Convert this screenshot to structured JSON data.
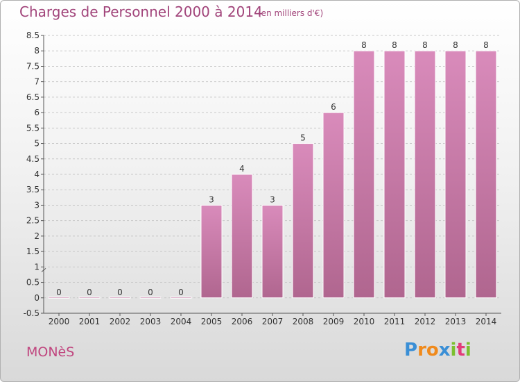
{
  "chart_data": {
    "type": "bar",
    "title": "Charges de Personnel 2000 à 2014",
    "subtitle": "(en milliers d'€)",
    "categories": [
      "2000",
      "2001",
      "2002",
      "2003",
      "2004",
      "2005",
      "2006",
      "2007",
      "2008",
      "2009",
      "2010",
      "2011",
      "2012",
      "2013",
      "2014"
    ],
    "values": [
      0,
      0,
      0,
      0,
      0,
      3,
      4,
      3,
      5,
      6,
      8,
      8,
      8,
      8,
      8
    ],
    "data_labels": [
      "0",
      "0",
      "0",
      "0",
      "0",
      "3",
      "4",
      "3",
      "5",
      "6",
      "8",
      "8",
      "8",
      "8",
      "8"
    ],
    "ylim": [
      -0.5,
      8.5
    ],
    "yticks": [
      "-0.5",
      "0",
      "0.5",
      "1",
      "1.5",
      "2",
      "2.5",
      "3",
      "3.5",
      "4",
      "4.5",
      "5",
      "5.5",
      "6",
      "6.5",
      "7",
      "7.5",
      "8",
      "8.5"
    ],
    "grid": true,
    "xlabel": "",
    "ylabel": "",
    "bar_color": "#d98bbb",
    "bar_color_dark": "#b0668f"
  },
  "commune": "MONèS",
  "brand": {
    "letters": [
      "P",
      "r",
      "o",
      "x",
      "i",
      "t",
      "i"
    ],
    "colors": [
      "#3a8fd6",
      "#f08a1c",
      "#f08a1c",
      "#3a8fd6",
      "#7cbf2f",
      "#e23b7a",
      "#7cbf2f"
    ]
  }
}
